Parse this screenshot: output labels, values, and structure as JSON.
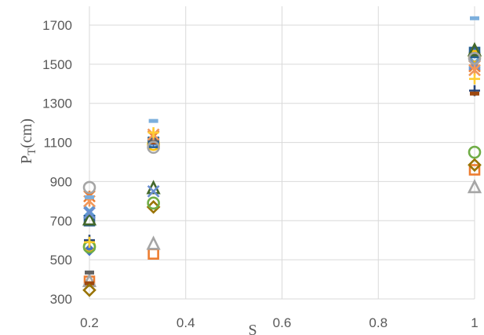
{
  "chart_data": {
    "type": "scatter",
    "title": "",
    "xlabel": "S",
    "ylabel": {
      "main": "P",
      "sub": "T",
      "unit": "(cm)"
    },
    "xlim": [
      0.2,
      1
    ],
    "ylim": [
      300,
      1700
    ],
    "x_ticks": [
      "0.2",
      "0.4",
      "0.6",
      "0.8",
      "1"
    ],
    "y_ticks": [
      "300",
      "500",
      "700",
      "900",
      "1100",
      "1300",
      "1500",
      "1700"
    ],
    "grid": true,
    "series": [
      {
        "marker": "diamond-filled",
        "color": "#4472c4",
        "points": [
          [
            0.2,
            550
          ],
          [
            0.333,
            1110
          ],
          [
            1,
            1560
          ]
        ]
      },
      {
        "marker": "square",
        "color": "#ed7d31",
        "points": [
          [
            0.2,
            390
          ],
          [
            0.333,
            530
          ],
          [
            1,
            960
          ]
        ]
      },
      {
        "marker": "triangle",
        "color": "#a5a5a5",
        "points": [
          [
            0.2,
            390
          ],
          [
            0.333,
            580
          ],
          [
            1,
            870
          ]
        ]
      },
      {
        "marker": "x",
        "color": "#5b9bd5",
        "points": [
          [
            0.2,
            750
          ],
          [
            0.333,
            1100
          ],
          [
            1,
            1510
          ]
        ]
      },
      {
        "marker": "star",
        "color": "#ed7d31",
        "points": [
          [
            0.2,
            825
          ],
          [
            0.333,
            1130
          ],
          [
            1,
            1490
          ]
        ]
      },
      {
        "marker": "circle",
        "color": "#ffc000",
        "points": [
          [
            0.2,
            570
          ],
          [
            0.333,
            1090
          ],
          [
            1,
            1540
          ]
        ]
      },
      {
        "marker": "plus",
        "color": "#264478",
        "points": [
          [
            0.2,
            600
          ],
          [
            0.333,
            1120
          ],
          [
            1,
            1365
          ]
        ]
      },
      {
        "marker": "dash",
        "color": "#9e480e",
        "points": [
          [
            0.2,
            380
          ],
          [
            0.333,
            1100
          ],
          [
            1,
            1350
          ]
        ]
      },
      {
        "marker": "dash",
        "color": "#636363",
        "points": [
          [
            0.2,
            435
          ],
          [
            0.333,
            1110
          ],
          [
            1,
            1550
          ]
        ]
      },
      {
        "marker": "diamond",
        "color": "#997300",
        "points": [
          [
            0.2,
            345
          ],
          [
            0.333,
            770
          ],
          [
            1,
            985
          ]
        ]
      },
      {
        "marker": "square",
        "color": "#255e91",
        "points": [
          [
            0.2,
            700
          ],
          [
            0.333,
            1100
          ],
          [
            1,
            1560
          ]
        ]
      },
      {
        "marker": "triangle",
        "color": "#43682b",
        "points": [
          [
            0.2,
            705
          ],
          [
            0.333,
            865
          ],
          [
            1,
            1570
          ]
        ]
      },
      {
        "marker": "x",
        "color": "#698ed0",
        "points": [
          [
            0.2,
            740
          ],
          [
            0.333,
            850
          ],
          [
            1,
            1500
          ]
        ]
      },
      {
        "marker": "star",
        "color": "#f1975a",
        "points": [
          [
            0.2,
            800
          ],
          [
            0.333,
            1140
          ],
          [
            1,
            1470
          ]
        ]
      },
      {
        "marker": "circle",
        "color": "#70ad47",
        "points": [
          [
            0.2,
            565
          ],
          [
            0.333,
            790
          ],
          [
            1,
            1050
          ]
        ]
      },
      {
        "marker": "plus",
        "color": "#ffcd33",
        "points": [
          [
            0.2,
            590
          ],
          [
            0.333,
            1150
          ],
          [
            1,
            1425
          ]
        ]
      },
      {
        "marker": "dash",
        "color": "#7cafdd",
        "points": [
          [
            0.2,
            820
          ],
          [
            0.333,
            1210
          ],
          [
            1,
            1735
          ]
        ]
      },
      {
        "marker": "circle",
        "color": "#a5a5a5",
        "points": [
          [
            0.2,
            870
          ],
          [
            0.333,
            1075
          ],
          [
            1,
            1530
          ]
        ]
      }
    ]
  }
}
